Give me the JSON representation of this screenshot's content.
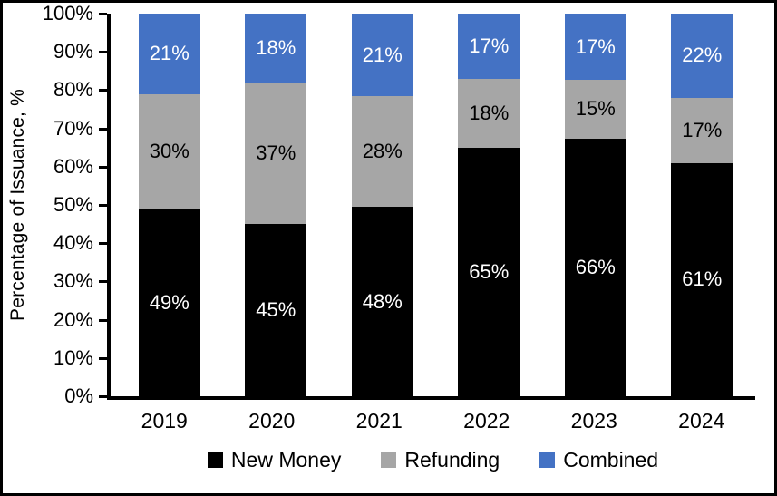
{
  "chart_data": {
    "type": "bar",
    "subtype": "stacked-100",
    "title": "",
    "xlabel": "",
    "ylabel": "Percentage of Issuance, %",
    "categories": [
      "2019",
      "2020",
      "2021",
      "2022",
      "2023",
      "2024"
    ],
    "series": [
      {
        "name": "New Money",
        "color": "#000000",
        "label_color": "#FFFFFF",
        "values": [
          49,
          45,
          48,
          65,
          66,
          61
        ]
      },
      {
        "name": "Refunding",
        "color": "#A6A6A6",
        "label_color": "#000000",
        "values": [
          30,
          37,
          28,
          18,
          15,
          17
        ]
      },
      {
        "name": "Combined",
        "color": "#4472C4",
        "label_color": "#FFFFFF",
        "values": [
          21,
          18,
          21,
          17,
          17,
          22
        ]
      }
    ],
    "bar_label_suffix": "%",
    "y_ticks": [
      "100%",
      "90%",
      "80%",
      "70%",
      "60%",
      "50%",
      "40%",
      "30%",
      "20%",
      "10%",
      "0%"
    ],
    "ylim": [
      0,
      100
    ],
    "grid": false,
    "legend_position": "bottom",
    "legend": [
      "New Money",
      "Refunding",
      "Combined"
    ]
  }
}
